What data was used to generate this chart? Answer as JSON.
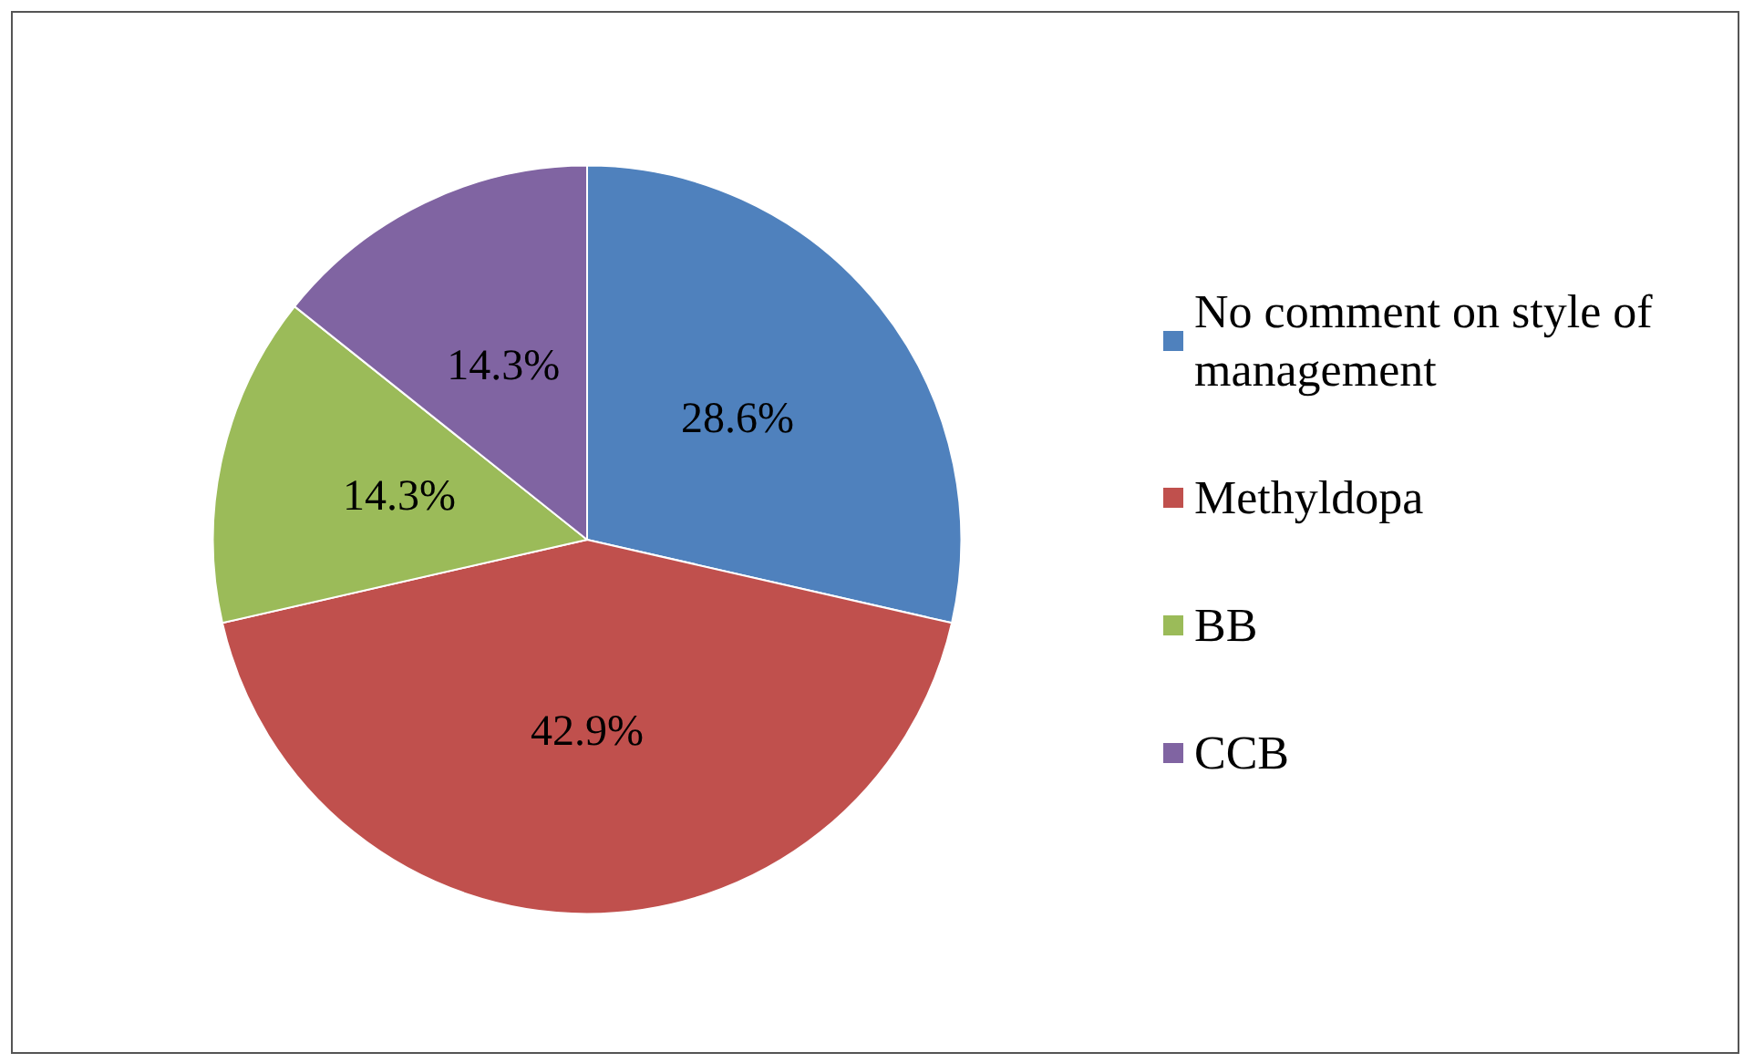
{
  "chart_data": {
    "type": "pie",
    "categories": [
      "No comment on style of management",
      "Methyldopa",
      "BB",
      "CCB"
    ],
    "values": [
      28.6,
      42.9,
      14.3,
      14.3
    ],
    "colors": [
      "#4f81bd",
      "#c0504d",
      "#9bbb59",
      "#8064a2"
    ],
    "value_labels": [
      "28.6%",
      "42.9%",
      "14.3%",
      "14.3%"
    ],
    "legend": "right"
  }
}
